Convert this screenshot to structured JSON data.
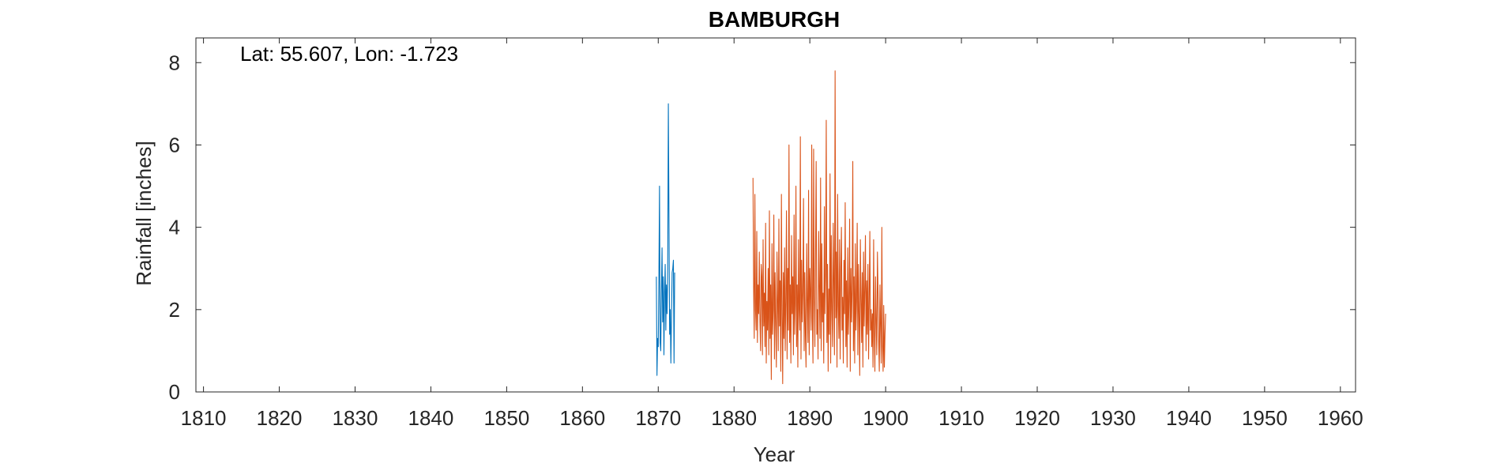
{
  "chart_data": {
    "type": "line",
    "title": "BAMBURGH",
    "xlabel": "Year",
    "ylabel": "Rainfall [inches]",
    "annotation": "Lat: 55.607, Lon: -1.723",
    "xlim": [
      1809,
      1962
    ],
    "ylim": [
      0,
      8.6
    ],
    "xticks": [
      1810,
      1820,
      1830,
      1840,
      1850,
      1860,
      1870,
      1880,
      1890,
      1900,
      1910,
      1920,
      1930,
      1940,
      1950,
      1960
    ],
    "yticks": [
      0,
      2,
      4,
      6,
      8
    ],
    "grid": false,
    "colors": {
      "series1": "#0072BD",
      "series2": "#D95319",
      "axis": "#262626"
    },
    "series": [
      {
        "x_start": 1869.75,
        "step": 0.083333,
        "values": [
          2.8,
          0.4,
          1.3,
          1.1,
          2.7,
          5.0,
          1.2,
          1.0,
          2.4,
          3.5,
          1.7,
          2.8,
          0.9,
          2.4,
          3.1,
          1.5,
          2.6,
          1.9,
          3.0,
          7.0,
          4.2,
          1.4,
          2.0,
          0.7,
          1.9,
          2.9,
          3.0,
          3.2,
          0.7,
          2.9
        ]
      },
      {
        "x_start": 1882.5,
        "step": 0.083333,
        "values": [
          5.2,
          2.5,
          1.3,
          4.8,
          2.0,
          1.5,
          3.9,
          1.2,
          2.6,
          1.9,
          3.4,
          1.7,
          1.0,
          3.1,
          2.8,
          0.9,
          3.7,
          1.6,
          2.4,
          1.1,
          4.1,
          0.7,
          2.2,
          1.5,
          3.0,
          0.9,
          4.4,
          1.3,
          2.6,
          0.3,
          3.6,
          1.4,
          2.0,
          4.3,
          0.8,
          2.9,
          1.7,
          0.6,
          3.4,
          2.2,
          1.0,
          4.2,
          1.6,
          2.7,
          0.5,
          4.8,
          1.9,
          0.2,
          2.9,
          1.3,
          3.5,
          1.0,
          2.2,
          4.4,
          0.8,
          3.0,
          1.5,
          6.0,
          1.2,
          2.6,
          0.7,
          3.8,
          1.9,
          2.8,
          0.9,
          4.3,
          1.4,
          2.1,
          5.0,
          1.1,
          2.6,
          0.6,
          3.7,
          2.0,
          1.5,
          6.2,
          0.8,
          3.2,
          1.7,
          2.4,
          4.7,
          1.0,
          2.9,
          1.4,
          0.6,
          3.6,
          2.1,
          1.2,
          4.9,
          0.9,
          3.0,
          2.4,
          1.5,
          6.0,
          1.8,
          0.7,
          5.9,
          2.3,
          1.1,
          3.3,
          5.6,
          1.4,
          2.0,
          0.8,
          3.9,
          2.5,
          1.3,
          5.2,
          1.0,
          3.6,
          1.7,
          2.4,
          0.7,
          4.5,
          1.9,
          2.8,
          6.6,
          1.2,
          3.1,
          0.5,
          2.5,
          1.4,
          5.3,
          0.7,
          3.8,
          2.0,
          1.1,
          4.1,
          2.6,
          0.9,
          7.8,
          1.8,
          3.4,
          0.6,
          4.8,
          2.1,
          1.3,
          3.7,
          0.8,
          2.9,
          4.0,
          1.5,
          2.3,
          0.7,
          3.2,
          1.9,
          4.6,
          1.1,
          2.7,
          0.6,
          3.5,
          1.4,
          2.2,
          4.2,
          0.5,
          3.0,
          1.7,
          2.5,
          5.6,
          1.0,
          2.8,
          0.7,
          3.6,
          1.5,
          2.2,
          4.1,
          0.9,
          3.1,
          1.8,
          0.4,
          3.7,
          2.3,
          1.2,
          2.9,
          0.6,
          3.4,
          1.6,
          2.5,
          3.8,
          1.0,
          2.7,
          1.4,
          3.1,
          0.8,
          2.2,
          3.9,
          1.5,
          2.0,
          1.1,
          1.9,
          0.6,
          3.7,
          1.4,
          0.5,
          2.8,
          1.7,
          0.9,
          3.4,
          2.4,
          1.2,
          0.5,
          2.6,
          1.6,
          0.7,
          4.0,
          1.1,
          0.5,
          2.1,
          0.6,
          1.4,
          1.9
        ]
      }
    ]
  }
}
